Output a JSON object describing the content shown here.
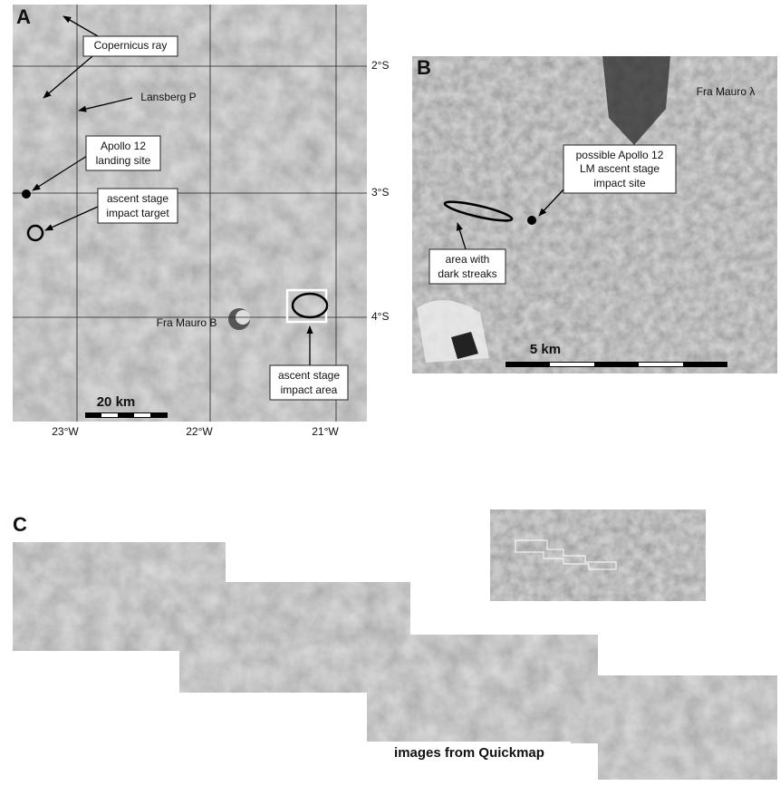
{
  "panel_a": {
    "label": "A",
    "latitudes": [
      "2°S",
      "3°S",
      "4°S"
    ],
    "longitudes": [
      "23°W",
      "22°W",
      "21°W"
    ],
    "scale_bar": "20 km",
    "labels": [
      {
        "lines": [
          "Copernicus ray"
        ]
      },
      {
        "lines": [
          "Lansberg P"
        ]
      },
      {
        "lines": [
          "Apollo 12",
          "landing site"
        ]
      },
      {
        "lines": [
          "ascent stage",
          "impact target"
        ]
      },
      {
        "lines": [
          "Fra Mauro B"
        ]
      },
      {
        "lines": [
          "ascent stage",
          "impact area"
        ]
      }
    ]
  },
  "panel_b": {
    "label": "B",
    "scale_bar": "5 km",
    "labels": [
      {
        "lines": [
          "Fra Mauro λ"
        ]
      },
      {
        "lines": [
          "possible Apollo 12",
          "LM ascent stage",
          "impact site"
        ]
      },
      {
        "lines": [
          "area with",
          "dark streaks"
        ]
      }
    ]
  },
  "panel_c": {
    "label": "C",
    "caption": "images from Quickmap"
  }
}
